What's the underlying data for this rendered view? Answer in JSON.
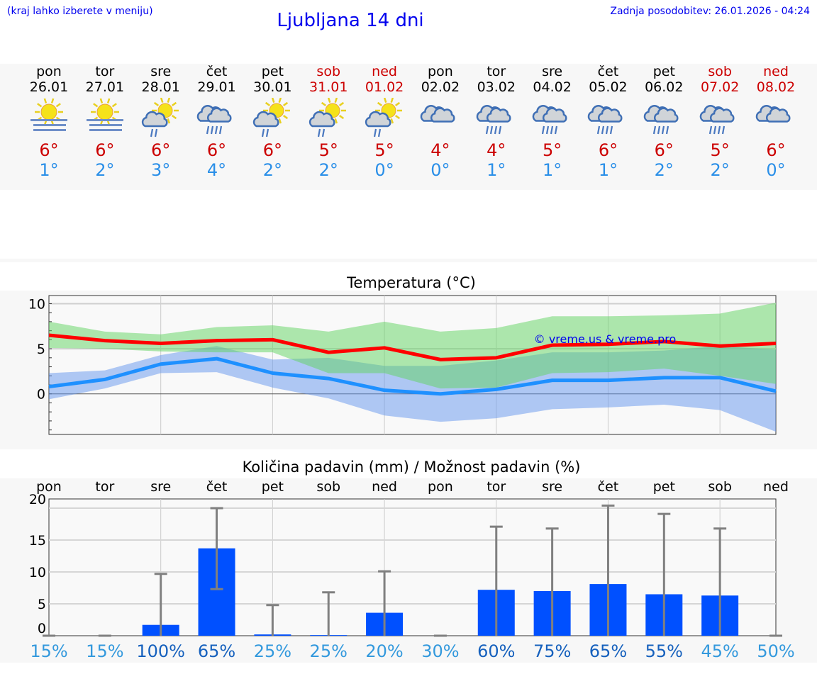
{
  "header": {
    "hint": "(kraj lahko izberete v meniju)",
    "title": "Ljubljana 14 dni",
    "updated": "Zadnja posodobitev: 26.01.2026 - 04:24"
  },
  "days": [
    {
      "name": "pon",
      "date": "26.01",
      "weekend": false,
      "icon": "fog-sun-icon",
      "max": "6°",
      "min": "1°"
    },
    {
      "name": "tor",
      "date": "27.01",
      "weekend": false,
      "icon": "fog-sun-icon",
      "max": "6°",
      "min": "2°"
    },
    {
      "name": "sre",
      "date": "28.01",
      "weekend": false,
      "icon": "sun-cloud-rain-icon",
      "max": "6°",
      "min": "3°"
    },
    {
      "name": "čet",
      "date": "29.01",
      "weekend": false,
      "icon": "cloud-heavy-rain-icon",
      "max": "6°",
      "min": "4°"
    },
    {
      "name": "pet",
      "date": "30.01",
      "weekend": false,
      "icon": "sun-cloud-rain-icon",
      "max": "6°",
      "min": "2°"
    },
    {
      "name": "sob",
      "date": "31.01",
      "weekend": true,
      "icon": "sun-cloud-rain-icon",
      "max": "5°",
      "min": "2°"
    },
    {
      "name": "ned",
      "date": "01.02",
      "weekend": true,
      "icon": "sun-cloud-rain-icon",
      "max": "5°",
      "min": "0°"
    },
    {
      "name": "pon",
      "date": "02.02",
      "weekend": false,
      "icon": "cloudy-icon",
      "max": "4°",
      "min": "0°"
    },
    {
      "name": "tor",
      "date": "03.02",
      "weekend": false,
      "icon": "cloud-heavy-rain-icon",
      "max": "4°",
      "min": "1°"
    },
    {
      "name": "sre",
      "date": "04.02",
      "weekend": false,
      "icon": "cloud-heavy-rain-icon",
      "max": "5°",
      "min": "1°"
    },
    {
      "name": "čet",
      "date": "05.02",
      "weekend": false,
      "icon": "cloud-heavy-rain-icon",
      "max": "6°",
      "min": "1°"
    },
    {
      "name": "pet",
      "date": "06.02",
      "weekend": false,
      "icon": "cloud-heavy-rain-icon",
      "max": "6°",
      "min": "2°"
    },
    {
      "name": "sob",
      "date": "07.02",
      "weekend": true,
      "icon": "cloud-heavy-rain-icon",
      "max": "5°",
      "min": "2°"
    },
    {
      "name": "ned",
      "date": "08.02",
      "weekend": true,
      "icon": "cloudy-icon",
      "max": "6°",
      "min": "0°"
    }
  ],
  "colors": {
    "max": "#ff0000",
    "min": "#1e90ff",
    "maxBand": "#5fd35f",
    "minBand": "#6495ed",
    "bar": "#0050ff",
    "err": "#808080",
    "pctDark": "#1560bd",
    "pctLight": "#3399dd"
  },
  "chart_data": [
    {
      "type": "line",
      "title": "Temperatura (°C)",
      "ylim": [
        -4.5,
        10.9
      ],
      "yticks": [
        "0",
        "5",
        "10"
      ],
      "yticksVal": [
        0,
        5,
        10
      ],
      "watermark": "© vreme.us & vreme.pro",
      "series": [
        {
          "name": "max",
          "values": [
            6.5,
            5.9,
            5.6,
            5.9,
            6.0,
            4.6,
            5.1,
            3.8,
            4.0,
            5.4,
            5.5,
            5.8,
            5.3,
            5.6
          ]
        },
        {
          "name": "min",
          "values": [
            0.8,
            1.6,
            3.3,
            3.9,
            2.3,
            1.7,
            0.4,
            0.0,
            0.5,
            1.5,
            1.5,
            1.8,
            1.8,
            0.3
          ]
        }
      ],
      "bands": [
        {
          "name": "max-range",
          "upper": [
            8.0,
            6.9,
            6.6,
            7.4,
            7.6,
            6.9,
            8.0,
            6.9,
            7.3,
            8.6,
            8.6,
            8.7,
            8.9,
            10.1
          ],
          "lower": [
            5.1,
            5.0,
            4.7,
            4.6,
            4.6,
            2.3,
            2.3,
            0.6,
            0.7,
            2.3,
            2.4,
            2.8,
            2.0,
            1.1
          ]
        },
        {
          "name": "min-range",
          "upper": [
            2.3,
            2.6,
            4.3,
            5.3,
            3.8,
            4.0,
            3.1,
            3.1,
            3.7,
            4.6,
            4.6,
            4.8,
            5.3,
            4.9
          ],
          "lower": [
            -0.6,
            0.6,
            2.3,
            2.4,
            0.7,
            -0.5,
            -2.4,
            -3.1,
            -2.7,
            -1.7,
            -1.5,
            -1.2,
            -1.8,
            -4.2
          ]
        }
      ]
    },
    {
      "type": "bar",
      "title": "Količina padavin (mm) / Možnost padavin (%)",
      "ylim": [
        0,
        21.4
      ],
      "yticks": [
        "0",
        "5",
        "10",
        "15",
        "20"
      ],
      "yticksVal": [
        0,
        5,
        10,
        15,
        20
      ],
      "categories": [
        "pon",
        "tor",
        "sre",
        "čet",
        "pet",
        "sob",
        "ned",
        "pon",
        "tor",
        "sre",
        "čet",
        "pet",
        "sob",
        "ned"
      ],
      "values": [
        0,
        0,
        1.7,
        13.7,
        0.2,
        0.1,
        3.6,
        0,
        7.2,
        7.0,
        8.1,
        6.5,
        6.3,
        0
      ],
      "errLow": [
        0,
        0,
        0,
        7.3,
        0,
        0,
        0,
        0,
        0,
        0,
        0,
        0,
        0,
        0
      ],
      "errHigh": [
        0,
        0,
        9.7,
        20.0,
        4.8,
        6.8,
        10.1,
        0,
        17.1,
        16.8,
        20.4,
        19.1,
        16.8,
        0
      ],
      "probability": [
        "15%",
        "15%",
        "100%",
        "65%",
        "25%",
        "25%",
        "20%",
        "30%",
        "60%",
        "75%",
        "65%",
        "55%",
        "45%",
        "50%"
      ],
      "probDark": [
        false,
        false,
        true,
        true,
        false,
        false,
        false,
        false,
        true,
        true,
        true,
        true,
        false,
        false
      ]
    }
  ]
}
